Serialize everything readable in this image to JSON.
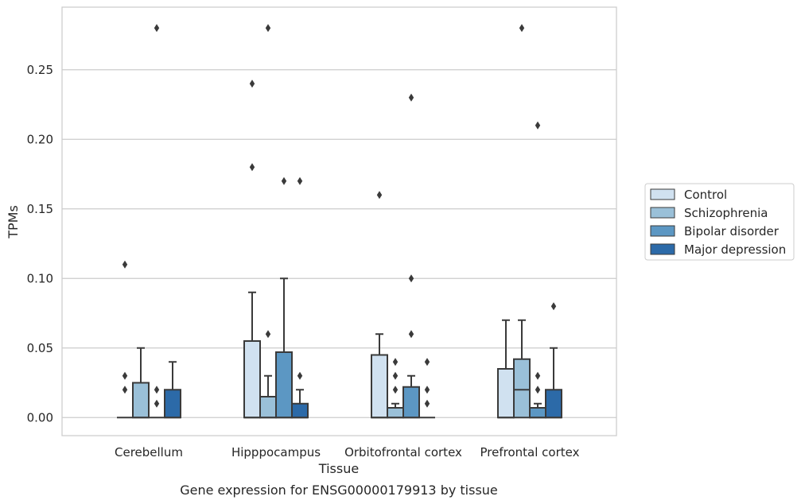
{
  "chart_data": {
    "type": "box",
    "xlabel": "Tissue",
    "ylabel": "TPMs",
    "caption": "Gene expression for ENSG00000179913 by tissue",
    "categories": [
      "Cerebellum",
      "Hipppocampus",
      "Orbitofrontal cortex",
      "Prefrontal cortex"
    ],
    "ylim": [
      -0.013,
      0.295
    ],
    "yticks": [
      0.0,
      0.05,
      0.1,
      0.15,
      0.2,
      0.25
    ],
    "ytick_labels": [
      "0.00",
      "0.05",
      "0.10",
      "0.15",
      "0.20",
      "0.25"
    ],
    "grid": "horizontal",
    "legend_position": "right",
    "series": [
      {
        "name": "Control",
        "color": "#d0e1f0",
        "boxes": [
          {
            "q1": 0.0,
            "median": 0.0,
            "q3": 0.0,
            "whislo": 0.0,
            "whishi": 0.0,
            "fliers": [
              0.02,
              0.03,
              0.11
            ]
          },
          {
            "q1": 0.0,
            "median": 0.0,
            "q3": 0.055,
            "whislo": 0.0,
            "whishi": 0.09,
            "fliers": [
              0.18,
              0.24
            ]
          },
          {
            "q1": 0.0,
            "median": 0.0,
            "q3": 0.045,
            "whislo": 0.0,
            "whishi": 0.06,
            "fliers": [
              0.16
            ]
          },
          {
            "q1": 0.0,
            "median": 0.0,
            "q3": 0.035,
            "whislo": 0.0,
            "whishi": 0.07,
            "fliers": []
          }
        ]
      },
      {
        "name": "Schizophrenia",
        "color": "#9ac0d8",
        "boxes": [
          {
            "q1": 0.0,
            "median": 0.0,
            "q3": 0.025,
            "whislo": 0.0,
            "whishi": 0.05,
            "fliers": []
          },
          {
            "q1": 0.0,
            "median": 0.0,
            "q3": 0.015,
            "whislo": 0.0,
            "whishi": 0.03,
            "fliers": [
              0.06,
              0.28
            ]
          },
          {
            "q1": 0.0,
            "median": 0.0,
            "q3": 0.007,
            "whislo": 0.0,
            "whishi": 0.01,
            "fliers": [
              0.02,
              0.03,
              0.04
            ]
          },
          {
            "q1": 0.0,
            "median": 0.02,
            "q3": 0.042,
            "whislo": 0.0,
            "whishi": 0.07,
            "fliers": [
              0.28
            ]
          }
        ]
      },
      {
        "name": "Bipolar disorder",
        "color": "#5c97c3",
        "boxes": [
          {
            "q1": 0.0,
            "median": 0.0,
            "q3": 0.0,
            "whislo": 0.0,
            "whishi": 0.0,
            "fliers": [
              0.01,
              0.02,
              0.28
            ]
          },
          {
            "q1": 0.0,
            "median": 0.0,
            "q3": 0.047,
            "whislo": 0.0,
            "whishi": 0.1,
            "fliers": [
              0.17
            ]
          },
          {
            "q1": 0.0,
            "median": 0.0,
            "q3": 0.022,
            "whislo": 0.0,
            "whishi": 0.03,
            "fliers": [
              0.06,
              0.1,
              0.23
            ]
          },
          {
            "q1": 0.0,
            "median": 0.0,
            "q3": 0.007,
            "whislo": 0.0,
            "whishi": 0.01,
            "fliers": [
              0.02,
              0.03,
              0.21
            ]
          }
        ]
      },
      {
        "name": "Major depression",
        "color": "#2c6aa8",
        "boxes": [
          {
            "q1": 0.0,
            "median": 0.0,
            "q3": 0.02,
            "whislo": 0.0,
            "whishi": 0.04,
            "fliers": []
          },
          {
            "q1": 0.0,
            "median": 0.0,
            "q3": 0.01,
            "whislo": 0.0,
            "whishi": 0.02,
            "fliers": [
              0.03,
              0.17
            ]
          },
          {
            "q1": 0.0,
            "median": 0.0,
            "q3": 0.0,
            "whislo": 0.0,
            "whishi": 0.0,
            "fliers": [
              0.01,
              0.02,
              0.04
            ]
          },
          {
            "q1": 0.0,
            "median": 0.0,
            "q3": 0.02,
            "whislo": 0.0,
            "whishi": 0.05,
            "fliers": [
              0.08
            ]
          }
        ]
      }
    ]
  }
}
